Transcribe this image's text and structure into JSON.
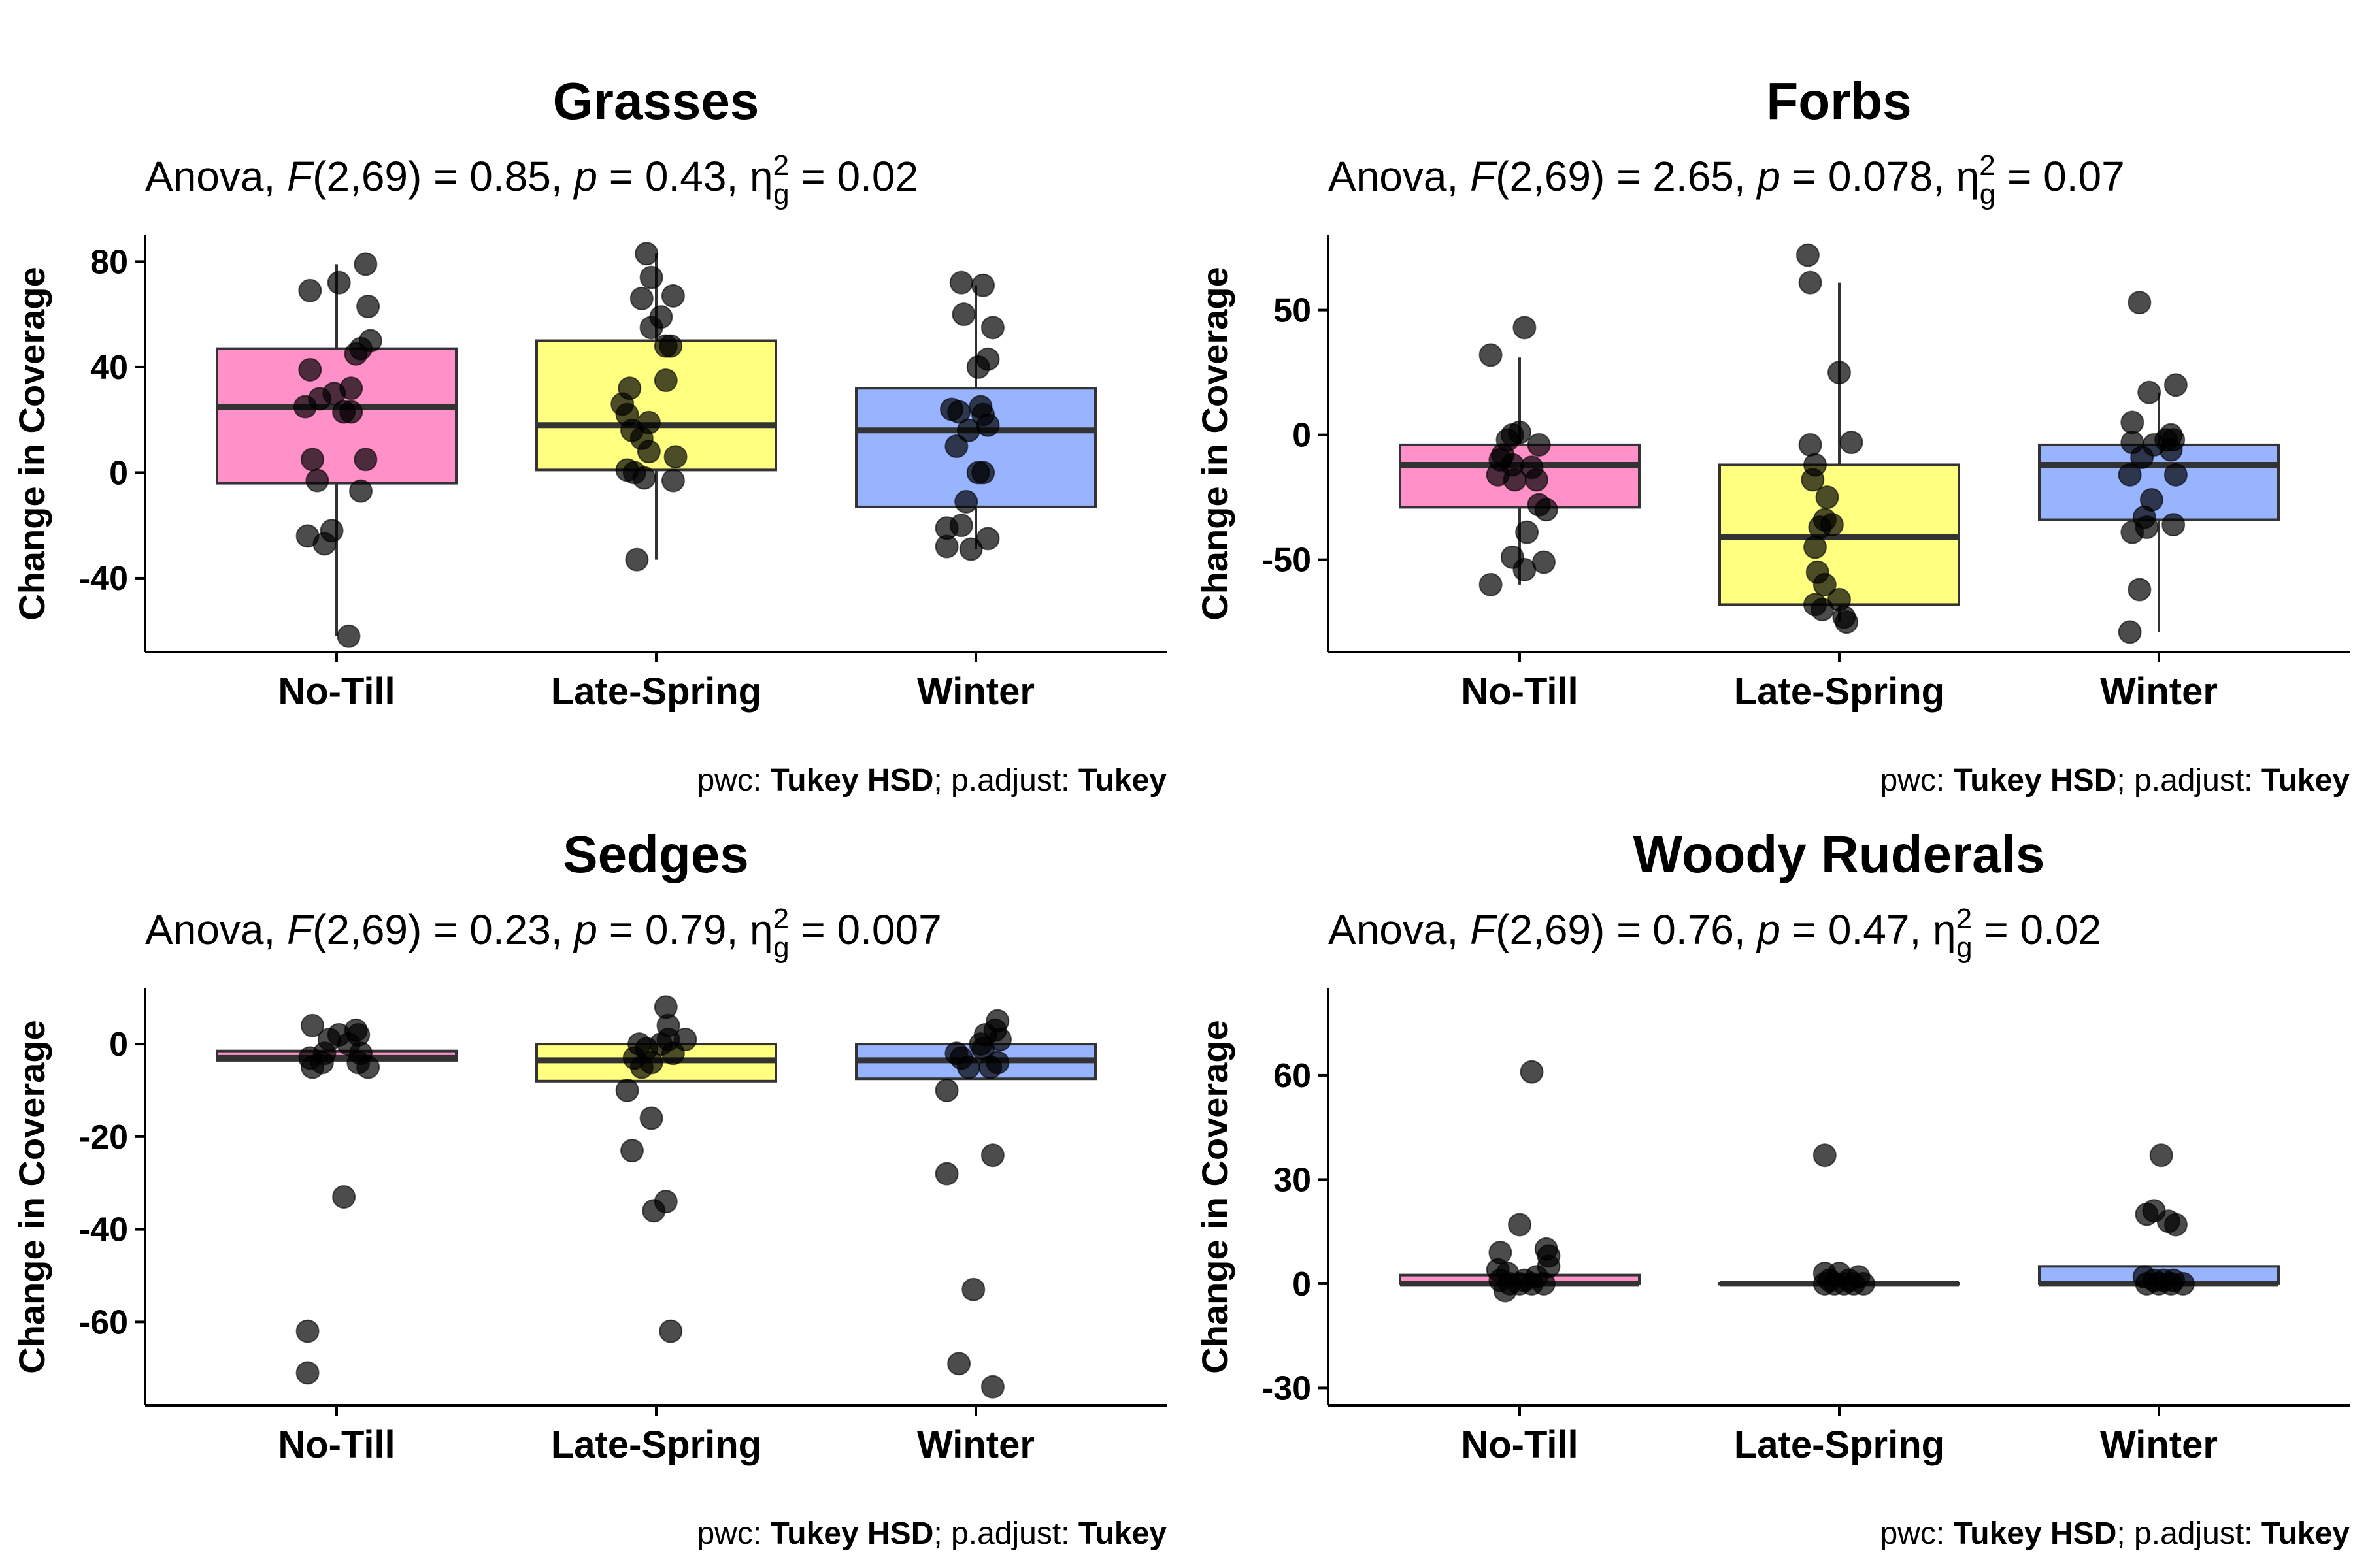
{
  "chart_data": [
    {
      "type": "boxplot",
      "title": "Grasses",
      "subtitle": {
        "prefix": "Anova, ",
        "F": "F",
        "df": "(2,69) = 0.85, ",
        "p": "p",
        "p_val": " = 0.43, ",
        "eta": "η",
        "eta_sup": "2",
        "eta_sub": "g",
        "eta_val": " = 0.02"
      },
      "caption": {
        "pwc_label": "pwc: ",
        "pwc_value": "Tukey HSD",
        "sep": "; p.adjust: ",
        "adjust_value": "Tukey"
      },
      "ylabel": "Change in Coverage",
      "ylim": [
        -68,
        90
      ],
      "yticks": [
        -40,
        0,
        40,
        80
      ],
      "ytick_labels": [
        "-40",
        "0",
        "40",
        "80"
      ],
      "categories": [
        "No-Till",
        "Late-Spring",
        "Winter"
      ],
      "colors": [
        "#FF90C8",
        "#FFFF80",
        "#98B4FF"
      ],
      "boxes": [
        {
          "q1": -4,
          "median": 25,
          "q3": 47,
          "lower": -62,
          "upper": 79
        },
        {
          "q1": 1,
          "median": 18,
          "q3": 50,
          "lower": -33,
          "upper": 83
        },
        {
          "q1": -13,
          "median": 16,
          "q3": 32,
          "lower": -29,
          "upper": 71
        }
      ],
      "points": [
        [
          [
            -62,
            0.05
          ],
          [
            -27,
            -0.05
          ],
          [
            -24,
            -0.12
          ],
          [
            -22,
            -0.02
          ],
          [
            -7,
            0.1
          ],
          [
            -3,
            -0.08
          ],
          [
            5,
            -0.1
          ],
          [
            5,
            0.12
          ],
          [
            23,
            0.03
          ],
          [
            23,
            0.06
          ],
          [
            25,
            -0.13
          ],
          [
            28,
            -0.07
          ],
          [
            30,
            -0.01
          ],
          [
            32,
            0.06
          ],
          [
            39,
            -0.11
          ],
          [
            45,
            0.08
          ],
          [
            47,
            0.1
          ],
          [
            50,
            0.14
          ],
          [
            63,
            0.13
          ],
          [
            69,
            -0.11
          ],
          [
            72,
            0.01
          ],
          [
            79,
            0.12
          ]
        ],
        [
          [
            -33,
            -0.08
          ],
          [
            -3,
            0.07
          ],
          [
            -2,
            -0.05
          ],
          [
            0,
            -0.09
          ],
          [
            1,
            -0.12
          ],
          [
            6,
            0.08
          ],
          [
            8,
            -0.03
          ],
          [
            13,
            -0.06
          ],
          [
            16,
            -0.1
          ],
          [
            19,
            -0.03
          ],
          [
            22,
            -0.12
          ],
          [
            26,
            -0.14
          ],
          [
            32,
            -0.11
          ],
          [
            35,
            0.04
          ],
          [
            48,
            0.06
          ],
          [
            48,
            0.04
          ],
          [
            55,
            -0.02
          ],
          [
            59,
            0.02
          ],
          [
            66,
            -0.06
          ],
          [
            67,
            0.07
          ],
          [
            74,
            -0.02
          ],
          [
            83,
            -0.04
          ]
        ],
        [
          [
            -29,
            -0.02
          ],
          [
            -28,
            -0.12
          ],
          [
            -25,
            0.05
          ],
          [
            -21,
            -0.12
          ],
          [
            -20,
            -0.06
          ],
          [
            -11,
            -0.04
          ],
          [
            0,
            0.01
          ],
          [
            0,
            0.03
          ],
          [
            10,
            -0.08
          ],
          [
            16,
            -0.03
          ],
          [
            18,
            0.05
          ],
          [
            22,
            0.03
          ],
          [
            23,
            -0.07
          ],
          [
            24,
            -0.1
          ],
          [
            25,
            0.02
          ],
          [
            40,
            0.01
          ],
          [
            43,
            0.05
          ],
          [
            55,
            0.07
          ],
          [
            60,
            -0.05
          ],
          [
            71,
            0.03
          ],
          [
            72,
            -0.06
          ]
        ]
      ]
    },
    {
      "type": "boxplot",
      "title": "Forbs",
      "subtitle": {
        "prefix": "Anova, ",
        "F": "F",
        "df": "(2,69) = 2.65, ",
        "p": "p",
        "p_val": " = 0.078, ",
        "eta": "η",
        "eta_sup": "2",
        "eta_sub": "g",
        "eta_val": " = 0.07"
      },
      "caption": {
        "pwc_label": "pwc: ",
        "pwc_value": "Tukey HSD",
        "sep": "; p.adjust: ",
        "adjust_value": "Tukey"
      },
      "ylabel": "Change in Coverage",
      "ylim": [
        -87,
        80
      ],
      "yticks": [
        -50,
        0,
        50
      ],
      "ytick_labels": [
        "-50",
        "0",
        "50"
      ],
      "categories": [
        "No-Till",
        "Late-Spring",
        "Winter"
      ],
      "colors": [
        "#FF90C8",
        "#FFFF80",
        "#98B4FF"
      ],
      "boxes": [
        {
          "q1": -29,
          "median": -12,
          "q3": -4,
          "lower": -60,
          "upper": 31
        },
        {
          "q1": -68,
          "median": -41,
          "q3": -12,
          "lower": -75,
          "upper": 61
        },
        {
          "q1": -34,
          "median": -12,
          "q3": -4,
          "lower": -79,
          "upper": 17
        }
      ],
      "points": [
        [
          [
            -60,
            -0.12
          ],
          [
            -54,
            0.02
          ],
          [
            -51,
            0.1
          ],
          [
            -49,
            -0.03
          ],
          [
            -39,
            0.03
          ],
          [
            -30,
            0.11
          ],
          [
            -28,
            0.08
          ],
          [
            -18,
            -0.02
          ],
          [
            -18,
            0.07
          ],
          [
            -16,
            -0.09
          ],
          [
            -13,
            0.05
          ],
          [
            -12,
            -0.03
          ],
          [
            -10,
            -0.08
          ],
          [
            -8,
            -0.07
          ],
          [
            -4,
            0.08
          ],
          [
            -2,
            -0.05
          ],
          [
            0,
            -0.03
          ],
          [
            1,
            0.0
          ],
          [
            32,
            -0.12
          ],
          [
            43,
            0.02
          ]
        ],
        [
          [
            -75,
            0.03
          ],
          [
            -73,
            0.02
          ],
          [
            -70,
            -0.07
          ],
          [
            -68,
            -0.1
          ],
          [
            -66,
            0.0
          ],
          [
            -60,
            -0.06
          ],
          [
            -55,
            -0.09
          ],
          [
            -45,
            -0.1
          ],
          [
            -37,
            -0.08
          ],
          [
            -36,
            -0.03
          ],
          [
            -34,
            -0.06
          ],
          [
            -25,
            -0.05
          ],
          [
            -18,
            -0.11
          ],
          [
            -12,
            -0.1
          ],
          [
            -4,
            -0.12
          ],
          [
            -3,
            0.05
          ],
          [
            25,
            0.0
          ],
          [
            61,
            -0.12
          ],
          [
            72,
            -0.13
          ]
        ],
        [
          [
            -79,
            -0.12
          ],
          [
            -62,
            -0.08
          ],
          [
            -39,
            -0.11
          ],
          [
            -37,
            -0.05
          ],
          [
            -36,
            0.06
          ],
          [
            -33,
            -0.06
          ],
          [
            -26,
            -0.03
          ],
          [
            -16,
            0.07
          ],
          [
            -16,
            -0.12
          ],
          [
            -9,
            -0.07
          ],
          [
            -6,
            0.05
          ],
          [
            -4,
            -0.02
          ],
          [
            -3,
            -0.11
          ],
          [
            -2,
            0.03
          ],
          [
            -2,
            0.06
          ],
          [
            0,
            0.05
          ],
          [
            5,
            -0.11
          ],
          [
            17,
            -0.04
          ],
          [
            20,
            0.07
          ],
          [
            53,
            -0.08
          ]
        ]
      ]
    },
    {
      "type": "boxplot",
      "title": "Sedges",
      "subtitle": {
        "prefix": "Anova, ",
        "F": "F",
        "df": "(2,69) = 0.23, ",
        "p": "p",
        "p_val": " = 0.79, ",
        "eta": "η",
        "eta_sup": "2",
        "eta_sub": "g",
        "eta_val": " = 0.007"
      },
      "caption": {
        "pwc_label": "pwc: ",
        "pwc_value": "Tukey HSD",
        "sep": "; p.adjust: ",
        "adjust_value": "Tukey"
      },
      "ylabel": "Change in Coverage",
      "ylim": [
        -78,
        12
      ],
      "yticks": [
        -60,
        -40,
        -20,
        0
      ],
      "ytick_labels": [
        "-60",
        "-40",
        "-20",
        "0"
      ],
      "categories": [
        "No-Till",
        "Late-Spring",
        "Winter"
      ],
      "colors": [
        "#FF90C8",
        "#FFFF80",
        "#98B4FF"
      ],
      "boxes": [
        {
          "q1": -3.5,
          "median": -3,
          "q3": -1.5,
          "lower": -3.5,
          "upper": -1.5
        },
        {
          "q1": -8,
          "median": -3.5,
          "q3": 0,
          "lower": -8,
          "upper": 0
        },
        {
          "q1": -7.5,
          "median": -3.5,
          "q3": 0,
          "lower": -7.5,
          "upper": 0
        }
      ],
      "points": [
        [
          [
            -71,
            -0.12
          ],
          [
            -62,
            -0.12
          ],
          [
            -33,
            0.03
          ],
          [
            -5,
            0.13
          ],
          [
            -5,
            -0.1
          ],
          [
            -4,
            0.09
          ],
          [
            -4,
            -0.06
          ],
          [
            -3,
            -0.11
          ],
          [
            -2,
            -0.05
          ],
          [
            -2,
            0.1
          ],
          [
            0,
            0.05
          ],
          [
            1,
            -0.03
          ],
          [
            2,
            0.09
          ],
          [
            2,
            0.01
          ],
          [
            3,
            0.08
          ],
          [
            4,
            -0.1
          ]
        ],
        [
          [
            -62,
            0.06
          ],
          [
            -36,
            -0.01
          ],
          [
            -34,
            0.04
          ],
          [
            -23,
            -0.1
          ],
          [
            -16,
            -0.02
          ],
          [
            -10,
            -0.12
          ],
          [
            -5,
            -0.06
          ],
          [
            -4,
            -0.02
          ],
          [
            -3,
            -0.09
          ],
          [
            -2,
            0.07
          ],
          [
            -1,
            -0.04
          ],
          [
            0,
            0.02
          ],
          [
            0,
            -0.07
          ],
          [
            1,
            0.05
          ],
          [
            1,
            0.12
          ],
          [
            4,
            0.05
          ],
          [
            8,
            0.04
          ]
        ],
        [
          [
            -74,
            0.07
          ],
          [
            -69,
            -0.07
          ],
          [
            -53,
            -0.01
          ],
          [
            -28,
            -0.12
          ],
          [
            -24,
            0.07
          ],
          [
            -10,
            -0.12
          ],
          [
            -5,
            -0.03
          ],
          [
            -5,
            0.06
          ],
          [
            -4,
            0.09
          ],
          [
            -3,
            -0.06
          ],
          [
            -2,
            -0.08
          ],
          [
            -1,
            0.03
          ],
          [
            0,
            0.02
          ],
          [
            1,
            0.1
          ],
          [
            2,
            0.04
          ],
          [
            3,
            0.08
          ],
          [
            5,
            0.09
          ]
        ]
      ]
    },
    {
      "type": "boxplot",
      "title": "Woody Ruderals",
      "subtitle": {
        "prefix": "Anova, ",
        "F": "F",
        "df": "(2,69) = 0.76, ",
        "p": "p",
        "p_val": " = 0.47, ",
        "eta": "η",
        "eta_sup": "2",
        "eta_sub": "g",
        "eta_val": " = 0.02"
      },
      "caption": {
        "pwc_label": "pwc: ",
        "pwc_value": "Tukey HSD",
        "sep": "; p.adjust: ",
        "adjust_value": "Tukey"
      },
      "ylabel": "Change in Coverage",
      "ylim": [
        -35,
        85
      ],
      "yticks": [
        -30,
        0,
        30,
        60
      ],
      "ytick_labels": [
        "-30",
        "0",
        "30",
        "60"
      ],
      "categories": [
        "No-Till",
        "Late-Spring",
        "Winter"
      ],
      "colors": [
        "#FF90C8",
        "#FFFF80",
        "#98B4FF"
      ],
      "boxes": [
        {
          "q1": 0,
          "median": 0,
          "q3": 2.5,
          "lower": 0,
          "upper": 2.5
        },
        {
          "q1": 0,
          "median": 0,
          "q3": 0,
          "lower": 0,
          "upper": 0
        },
        {
          "q1": 0,
          "median": 0,
          "q3": 5,
          "lower": 0,
          "upper": 5
        }
      ],
      "points": [
        [
          [
            -2,
            -0.06
          ],
          [
            0,
            -0.04
          ],
          [
            0,
            0.0
          ],
          [
            0,
            0.05
          ],
          [
            0,
            0.1
          ],
          [
            1,
            -0.08
          ],
          [
            1,
            0.02
          ],
          [
            2,
            0.07
          ],
          [
            3,
            -0.05
          ],
          [
            4,
            -0.09
          ],
          [
            5,
            0.12
          ],
          [
            8,
            0.12
          ],
          [
            9,
            -0.08
          ],
          [
            10,
            0.11
          ],
          [
            17,
            0.0
          ],
          [
            61,
            0.05
          ]
        ],
        [
          [
            0,
            -0.06
          ],
          [
            0,
            -0.02
          ],
          [
            0,
            0.02
          ],
          [
            0,
            0.06
          ],
          [
            0,
            0.1
          ],
          [
            1,
            -0.04
          ],
          [
            1,
            0.04
          ],
          [
            2,
            0.08
          ],
          [
            3,
            -0.06
          ],
          [
            3,
            0.0
          ],
          [
            37,
            -0.06
          ]
        ],
        [
          [
            0,
            -0.05
          ],
          [
            0,
            0.0
          ],
          [
            0,
            0.05
          ],
          [
            0,
            0.1
          ],
          [
            1,
            -0.02
          ],
          [
            1,
            0.02
          ],
          [
            1,
            0.06
          ],
          [
            2,
            -0.06
          ],
          [
            17,
            0.07
          ],
          [
            18,
            0.04
          ],
          [
            20,
            -0.05
          ],
          [
            21,
            -0.02
          ],
          [
            37,
            0.01
          ]
        ]
      ]
    }
  ]
}
